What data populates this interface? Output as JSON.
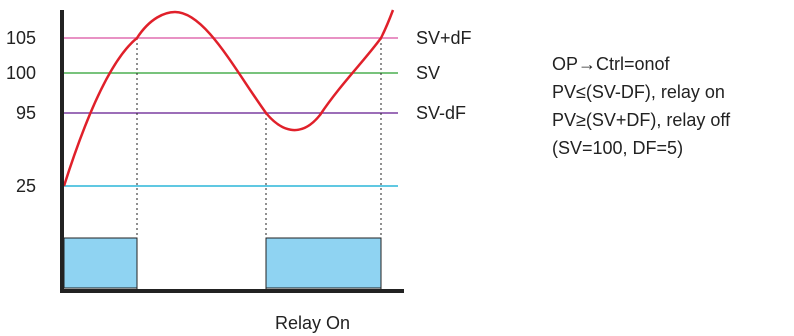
{
  "levels": [
    {
      "value": "105",
      "tag": "SV+dF",
      "color": "#e06fb0"
    },
    {
      "value": "100",
      "tag": "SV",
      "color": "#4caf50"
    },
    {
      "value": "95",
      "tag": "SV-dF",
      "color": "#7b3fa0"
    },
    {
      "value": "25",
      "tag": "",
      "color": "#2bb5d8"
    }
  ],
  "curve_color": "#e0202a",
  "relay_fill": "#8fd3f2",
  "axis_caption": "Relay On",
  "notes": [
    "OP→Ctrl=onof",
    "PV≤(SV-DF), relay on",
    "PV≥(SV+DF), relay off",
    "(SV=100, DF=5)"
  ]
}
